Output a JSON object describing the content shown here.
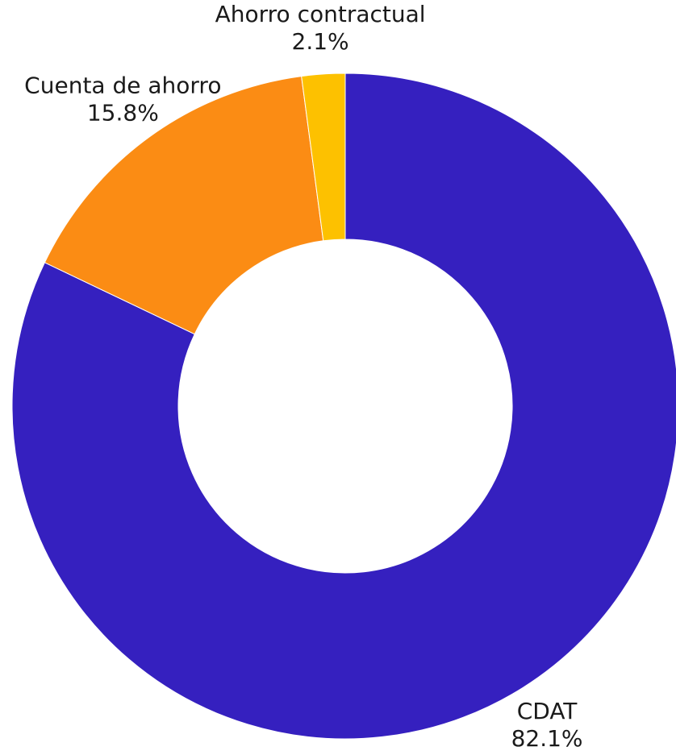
{
  "chart_data": {
    "type": "pie",
    "donut": true,
    "categories": [
      "CDAT",
      "Cuenta de ahorro",
      "Ahorro contractual"
    ],
    "values": [
      82.1,
      15.8,
      2.1
    ],
    "value_labels": [
      "82.1%",
      "15.8%",
      "2.1%"
    ],
    "colors": [
      "#3520bf",
      "#fb8c14",
      "#fdc100"
    ]
  }
}
